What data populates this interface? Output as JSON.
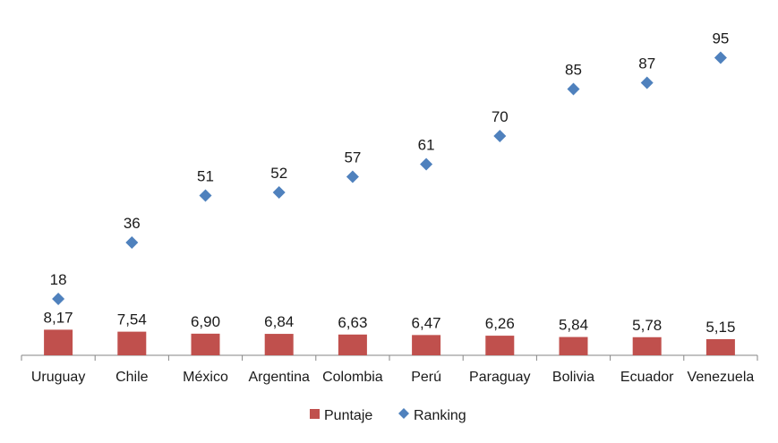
{
  "chart_data": {
    "type": "bar",
    "categories": [
      "Uruguay",
      "Chile",
      "México",
      "Argentina",
      "Colombia",
      "Perú",
      "Paraguay",
      "Bolivia",
      "Ecuador",
      "Venezuela"
    ],
    "series": [
      {
        "name": "Puntaje",
        "type": "bar",
        "color": "#c0504d",
        "values": [
          8.17,
          7.54,
          6.9,
          6.84,
          6.63,
          6.47,
          6.26,
          5.84,
          5.78,
          5.15
        ],
        "labels": [
          "8,17",
          "7,54",
          "6,90",
          "6,84",
          "6,63",
          "6,47",
          "6,26",
          "5,84",
          "5,78",
          "5,15"
        ]
      },
      {
        "name": "Ranking",
        "type": "scatter",
        "marker": "diamond",
        "color": "#4f81bd",
        "values": [
          18,
          36,
          51,
          52,
          57,
          61,
          70,
          85,
          87,
          95
        ],
        "labels": [
          "18",
          "36",
          "51",
          "52",
          "57",
          "61",
          "70",
          "85",
          "87",
          "95"
        ]
      }
    ],
    "title": "",
    "xlabel": "",
    "ylabel": "",
    "ylim": [
      0,
      100
    ],
    "grid": false,
    "legend_position": "bottom"
  }
}
